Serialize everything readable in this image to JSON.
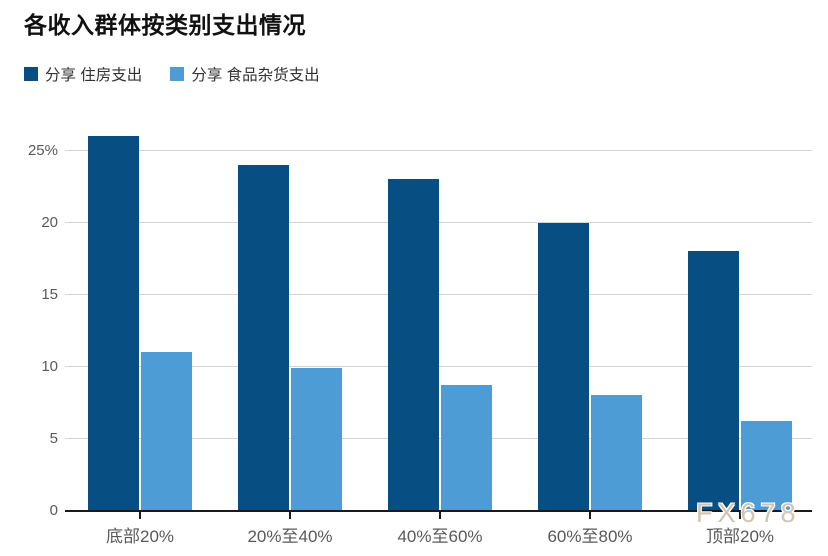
{
  "header": {
    "title": "各收入群体按类别支出情况"
  },
  "legend": {
    "items": [
      {
        "label": "分享 住房支出",
        "color": "#074f82"
      },
      {
        "label": "分享 食品杂货支出",
        "color": "#4d9cd6"
      }
    ]
  },
  "watermark": {
    "text": "FX678"
  },
  "chart_data": {
    "type": "bar",
    "title": "各收入群体按类别支出情况",
    "categories": [
      "底部20%",
      "20%至40%",
      "40%至60%",
      "60%至80%",
      "顶部20%"
    ],
    "series": [
      {
        "name": "分享 住房支出",
        "color": "#074f82",
        "values": [
          26,
          24,
          23,
          20,
          18
        ]
      },
      {
        "name": "分享 食品杂货支出",
        "color": "#4d9cd6",
        "values": [
          11,
          9.9,
          8.7,
          8,
          6.2
        ]
      }
    ],
    "y_ticks": [
      {
        "value": 25,
        "label": "25%"
      },
      {
        "value": 20,
        "label": "20"
      },
      {
        "value": 15,
        "label": "15"
      },
      {
        "value": 10,
        "label": "10"
      },
      {
        "value": 5,
        "label": "5"
      },
      {
        "value": 0,
        "label": "0"
      }
    ],
    "ylim": [
      0,
      26.5
    ],
    "xlabel": "",
    "ylabel": "",
    "grid": "horizontal",
    "legend_position": "top-left",
    "colors": {
      "gridline": "#d4d4d4",
      "axis": "#1a1a1a",
      "tick_text": "#595959"
    }
  }
}
